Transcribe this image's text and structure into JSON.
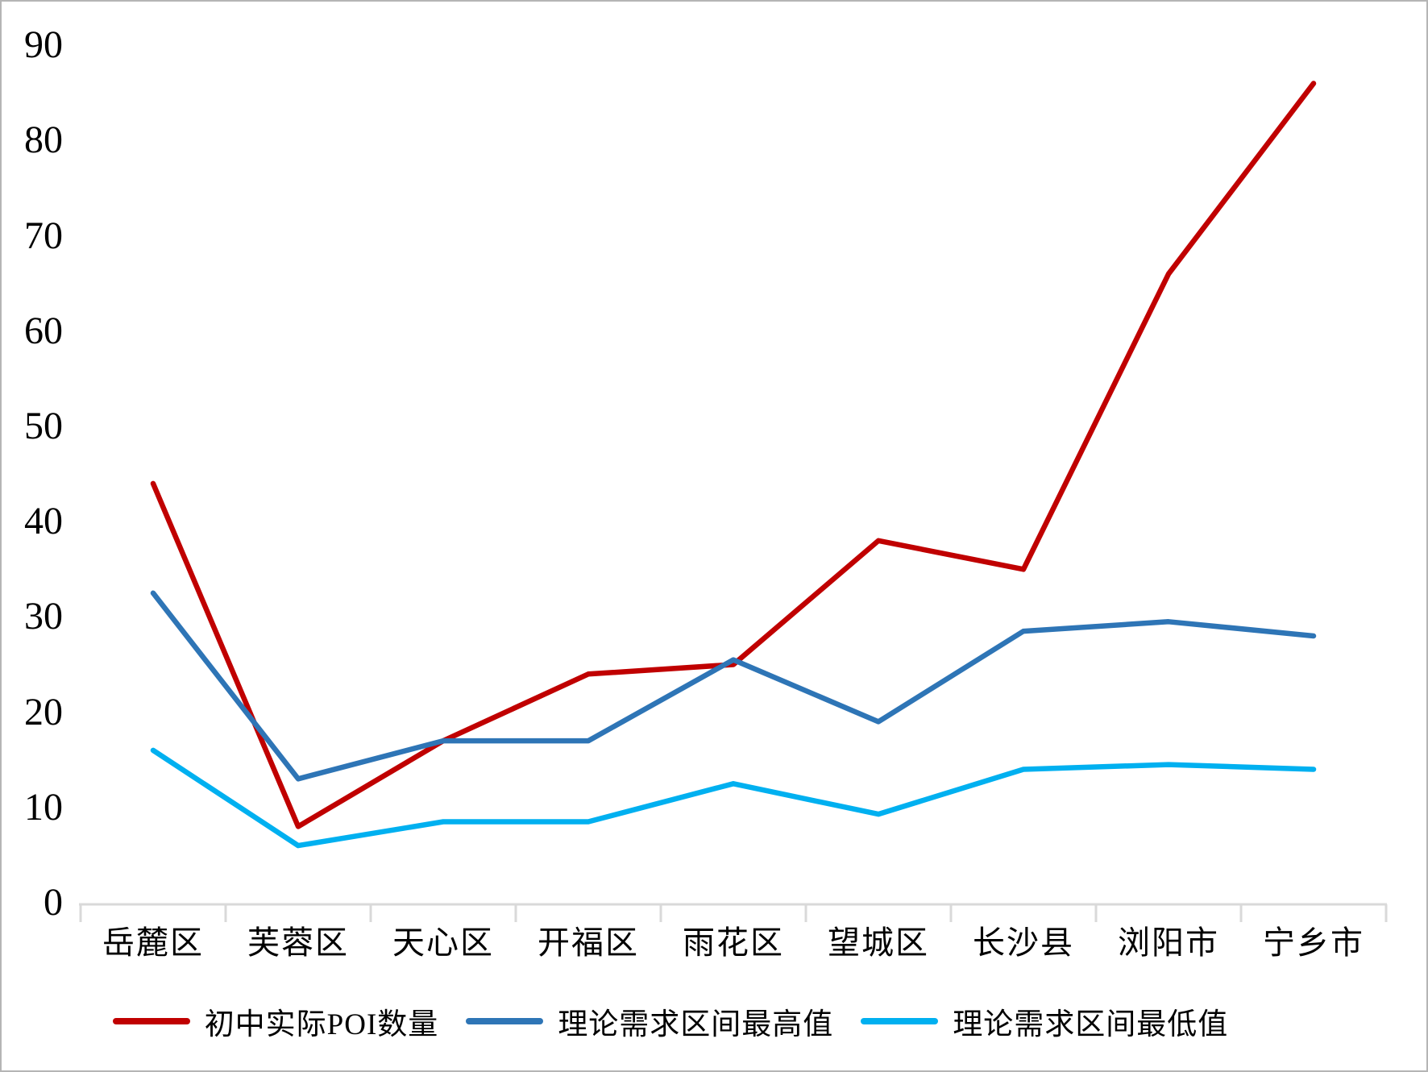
{
  "chart_data": {
    "type": "line",
    "title": "",
    "xlabel": "",
    "ylabel": "",
    "categories": [
      "岳麓区",
      "芙蓉区",
      "天心区",
      "开福区",
      "雨花区",
      "望城区",
      "长沙县",
      "浏阳市",
      "宁乡市"
    ],
    "series": [
      {
        "name": "初中实际POI数量",
        "color": "#C00000",
        "values": [
          44,
          8,
          17,
          24,
          25,
          38,
          35,
          66,
          86
        ]
      },
      {
        "name": "理论需求区间最高值",
        "color": "#2E75B6",
        "values": [
          32.5,
          13,
          17,
          17,
          25.5,
          19,
          28.5,
          29.5,
          28
        ]
      },
      {
        "name": "理论需求区间最低值",
        "color": "#00B0F0",
        "values": [
          16,
          6,
          8.5,
          8.5,
          12.5,
          9.3,
          14,
          14.5,
          14
        ]
      }
    ],
    "ylim": [
      0,
      90
    ],
    "yticks": [
      0,
      10,
      20,
      30,
      40,
      50,
      60,
      70,
      80,
      90
    ],
    "grid": false,
    "legend_position": "bottom",
    "axis_color": "#D9D9D9"
  }
}
